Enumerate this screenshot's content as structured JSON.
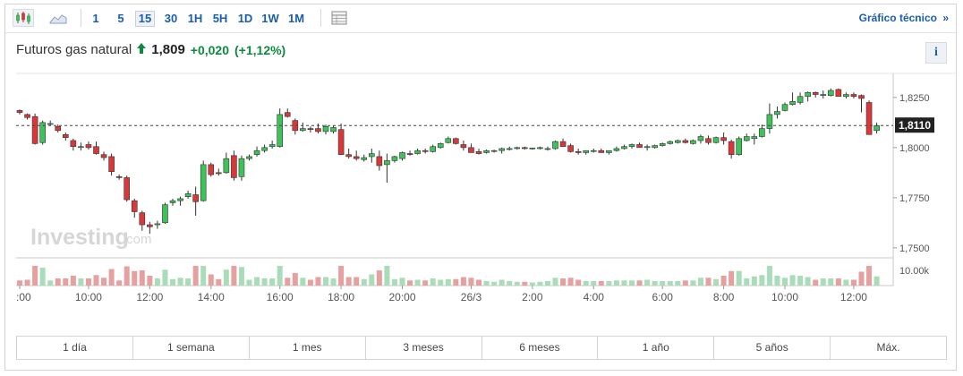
{
  "toolbar": {
    "chart_type_icons": [
      "candlestick-icon",
      "area-chart-icon"
    ],
    "timeframes": [
      "1",
      "5",
      "15",
      "30",
      "1H",
      "5H",
      "1D",
      "1W",
      "1M"
    ],
    "active_timeframe": "15",
    "indicator_icon": "table-icon",
    "technical_link": "Gráfico técnico",
    "technical_link_arrow": "»"
  },
  "header": {
    "name": "Futuros gas natural",
    "price": "1,809",
    "change": "+0,020",
    "change_pct": "(+1,12%)"
  },
  "info_button": "i",
  "watermark": {
    "brand": "Investing",
    "suffix": ".com"
  },
  "ranges": [
    "1 día",
    "1 semana",
    "1 mes",
    "3 meses",
    "6 meses",
    "1 año",
    "5 años",
    "Máx."
  ],
  "colors": {
    "up": "#3ec25a",
    "down": "#d9383a",
    "up_volume": "#a9dcb8",
    "down_volume": "#e6a0a0",
    "accent": "#1a5eab",
    "change": "#0e8a3e"
  },
  "chart_data": {
    "type": "candlestick",
    "interval_minutes": 15,
    "x_tick_labels": [
      ":00",
      "10:00",
      "12:00",
      "14:00",
      "16:00",
      "18:00",
      "20:00",
      "26/3",
      "2:00",
      "4:00",
      "6:00",
      "8:00",
      "10:00",
      "12:00"
    ],
    "y_tick_labels": [
      "1,8250",
      "1,8000",
      "1,7750",
      "1,7500"
    ],
    "ylim": [
      1.745,
      1.837
    ],
    "current_price": 1.811,
    "current_price_label": "1,8110",
    "volume_label": "10.00k",
    "candles": [
      [
        1.8185,
        1.819,
        1.8165,
        1.8175
      ],
      [
        1.8165,
        1.817,
        1.814,
        1.815
      ],
      [
        1.8155,
        1.817,
        1.8015,
        1.802
      ],
      [
        1.8025,
        1.8135,
        1.8015,
        1.8125
      ],
      [
        1.812,
        1.8135,
        1.811,
        1.812
      ],
      [
        1.8105,
        1.8115,
        1.8075,
        1.8085
      ],
      [
        1.8065,
        1.8075,
        1.8035,
        1.805
      ],
      [
        1.8035,
        1.8045,
        1.7985,
        1.8005
      ],
      [
        1.8005,
        1.8025,
        1.7985,
        1.8005
      ],
      [
        1.8015,
        1.803,
        1.799,
        1.8
      ],
      [
        1.8005,
        1.803,
        1.7965,
        1.797
      ],
      [
        1.7965,
        1.798,
        1.7935,
        1.795
      ],
      [
        1.7955,
        1.797,
        1.786,
        1.788
      ],
      [
        1.7855,
        1.7865,
        1.784,
        1.785
      ],
      [
        1.785,
        1.786,
        1.773,
        1.774
      ],
      [
        1.7735,
        1.7745,
        1.765,
        1.768
      ],
      [
        1.7675,
        1.7685,
        1.7585,
        1.7615
      ],
      [
        1.7615,
        1.763,
        1.757,
        1.7605
      ],
      [
        1.7615,
        1.7635,
        1.7595,
        1.762
      ],
      [
        1.7625,
        1.7725,
        1.762,
        1.7715
      ],
      [
        1.7725,
        1.7745,
        1.771,
        1.7735
      ],
      [
        1.7735,
        1.7755,
        1.771,
        1.7745
      ],
      [
        1.7755,
        1.7785,
        1.7745,
        1.777
      ],
      [
        1.7765,
        1.7805,
        1.766,
        1.773
      ],
      [
        1.7735,
        1.7935,
        1.773,
        1.7915
      ],
      [
        1.7915,
        1.7925,
        1.7855,
        1.7865
      ],
      [
        1.7875,
        1.7895,
        1.786,
        1.787
      ],
      [
        1.7875,
        1.7975,
        1.787,
        1.7945
      ],
      [
        1.796,
        1.7985,
        1.7835,
        1.785
      ],
      [
        1.7855,
        1.796,
        1.7835,
        1.7945
      ],
      [
        1.7945,
        1.7965,
        1.7935,
        1.7955
      ],
      [
        1.7965,
        1.8005,
        1.7955,
        1.7985
      ],
      [
        1.7985,
        1.8015,
        1.7975,
        1.8
      ],
      [
        1.8005,
        1.8035,
        1.7995,
        1.8015
      ],
      [
        1.8005,
        1.8195,
        1.8,
        1.8165
      ],
      [
        1.8175,
        1.8195,
        1.815,
        1.8155
      ],
      [
        1.8135,
        1.8145,
        1.8065,
        1.8085
      ],
      [
        1.8085,
        1.8125,
        1.808,
        1.8095
      ],
      [
        1.8095,
        1.8105,
        1.8075,
        1.809
      ],
      [
        1.8095,
        1.812,
        1.807,
        1.808
      ],
      [
        1.808,
        1.8115,
        1.8065,
        1.8105
      ],
      [
        1.808,
        1.811,
        1.807,
        1.81
      ],
      [
        1.809,
        1.812,
        1.7965,
        1.7965
      ],
      [
        1.7965,
        1.7995,
        1.7945,
        1.7955
      ],
      [
        1.7955,
        1.7985,
        1.7935,
        1.7945
      ],
      [
        1.794,
        1.7965,
        1.793,
        1.795
      ],
      [
        1.7955,
        1.7995,
        1.7925,
        1.797
      ],
      [
        1.7955,
        1.7985,
        1.7885,
        1.791
      ],
      [
        1.7915,
        1.797,
        1.7825,
        1.7935
      ],
      [
        1.7935,
        1.796,
        1.7925,
        1.7955
      ],
      [
        1.7945,
        1.798,
        1.7935,
        1.7975
      ],
      [
        1.797,
        1.7985,
        1.796,
        1.7965
      ],
      [
        1.797,
        1.7995,
        1.7965,
        1.7985
      ],
      [
        1.7985,
        1.7995,
        1.797,
        1.798
      ],
      [
        1.798,
        1.8015,
        1.7975,
        1.8005
      ],
      [
        1.8,
        1.8025,
        1.7995,
        1.802
      ],
      [
        1.8025,
        1.8055,
        1.802,
        1.8045
      ],
      [
        1.8045,
        1.805,
        1.8015,
        1.802
      ],
      [
        1.8015,
        1.8035,
        1.7985,
        1.8
      ],
      [
        1.8,
        1.802,
        1.7975,
        1.7975
      ],
      [
        1.798,
        1.7995,
        1.7965,
        1.797
      ],
      [
        1.7975,
        1.799,
        1.797,
        1.7985
      ],
      [
        1.7985,
        1.799,
        1.7975,
        1.7985
      ],
      [
        1.7985,
        1.8,
        1.797,
        1.7995
      ],
      [
        1.7995,
        1.8005,
        1.7985,
        1.7995
      ],
      [
        1.7995,
        1.8005,
        1.799,
        1.8
      ],
      [
        1.8,
        1.8005,
        1.799,
        1.7995
      ],
      [
        1.7995,
        1.8,
        1.799,
        1.7998
      ],
      [
        1.7995,
        1.8005,
        1.799,
        1.8
      ],
      [
        1.7995,
        1.8005,
        1.7985,
        1.7995
      ],
      [
        1.7995,
        1.8035,
        1.799,
        1.803
      ],
      [
        1.803,
        1.8045,
        1.8005,
        1.8005
      ],
      [
        1.801,
        1.802,
        1.7975,
        1.798
      ],
      [
        1.798,
        1.7995,
        1.7965,
        1.7975
      ],
      [
        1.7975,
        1.7985,
        1.7965,
        1.7985
      ],
      [
        1.7985,
        1.7995,
        1.7975,
        1.7985
      ],
      [
        1.7985,
        1.7995,
        1.7975,
        1.7975
      ],
      [
        1.7975,
        1.7985,
        1.7965,
        1.7985
      ],
      [
        1.7985,
        1.8005,
        1.798,
        1.7995
      ],
      [
        1.7995,
        1.8015,
        1.799,
        1.8005
      ],
      [
        1.8005,
        1.802,
        1.7995,
        1.8015
      ],
      [
        1.8015,
        1.8025,
        1.8,
        1.8
      ],
      [
        1.8,
        1.8015,
        1.7985,
        1.8005
      ],
      [
        1.8,
        1.8015,
        1.7995,
        1.801
      ],
      [
        1.801,
        1.8025,
        1.8005,
        1.802
      ],
      [
        1.802,
        1.8035,
        1.8015,
        1.803
      ],
      [
        1.8025,
        1.804,
        1.802,
        1.8035
      ],
      [
        1.8035,
        1.8045,
        1.802,
        1.8025
      ],
      [
        1.802,
        1.804,
        1.8015,
        1.8035
      ],
      [
        1.8035,
        1.8065,
        1.802,
        1.8055
      ],
      [
        1.8045,
        1.806,
        1.8015,
        1.8025
      ],
      [
        1.8025,
        1.8055,
        1.802,
        1.805
      ],
      [
        1.805,
        1.8075,
        1.8015,
        1.8035
      ],
      [
        1.803,
        1.804,
        1.7945,
        1.7965
      ],
      [
        1.7965,
        1.8055,
        1.796,
        1.8045
      ],
      [
        1.8035,
        1.807,
        1.803,
        1.8055
      ],
      [
        1.8045,
        1.807,
        1.8015,
        1.8055
      ],
      [
        1.8055,
        1.8115,
        1.805,
        1.8095
      ],
      [
        1.8095,
        1.822,
        1.807,
        1.8165
      ],
      [
        1.8165,
        1.8205,
        1.8145,
        1.818
      ],
      [
        1.8185,
        1.8225,
        1.818,
        1.8215
      ],
      [
        1.8215,
        1.8275,
        1.821,
        1.823
      ],
      [
        1.8225,
        1.8275,
        1.8215,
        1.8255
      ],
      [
        1.8255,
        1.828,
        1.823,
        1.8275
      ],
      [
        1.8275,
        1.828,
        1.825,
        1.8265
      ],
      [
        1.826,
        1.8285,
        1.8245,
        1.8265
      ],
      [
        1.826,
        1.8295,
        1.8255,
        1.8285
      ],
      [
        1.829,
        1.8295,
        1.8255,
        1.8255
      ],
      [
        1.8255,
        1.8275,
        1.8245,
        1.8265
      ],
      [
        1.8265,
        1.8275,
        1.8245,
        1.8255
      ],
      [
        1.826,
        1.8265,
        1.8175,
        1.8245
      ],
      [
        1.8225,
        1.8235,
        1.8065,
        1.8065
      ],
      [
        1.8085,
        1.8125,
        1.807,
        1.811
      ]
    ]
  }
}
